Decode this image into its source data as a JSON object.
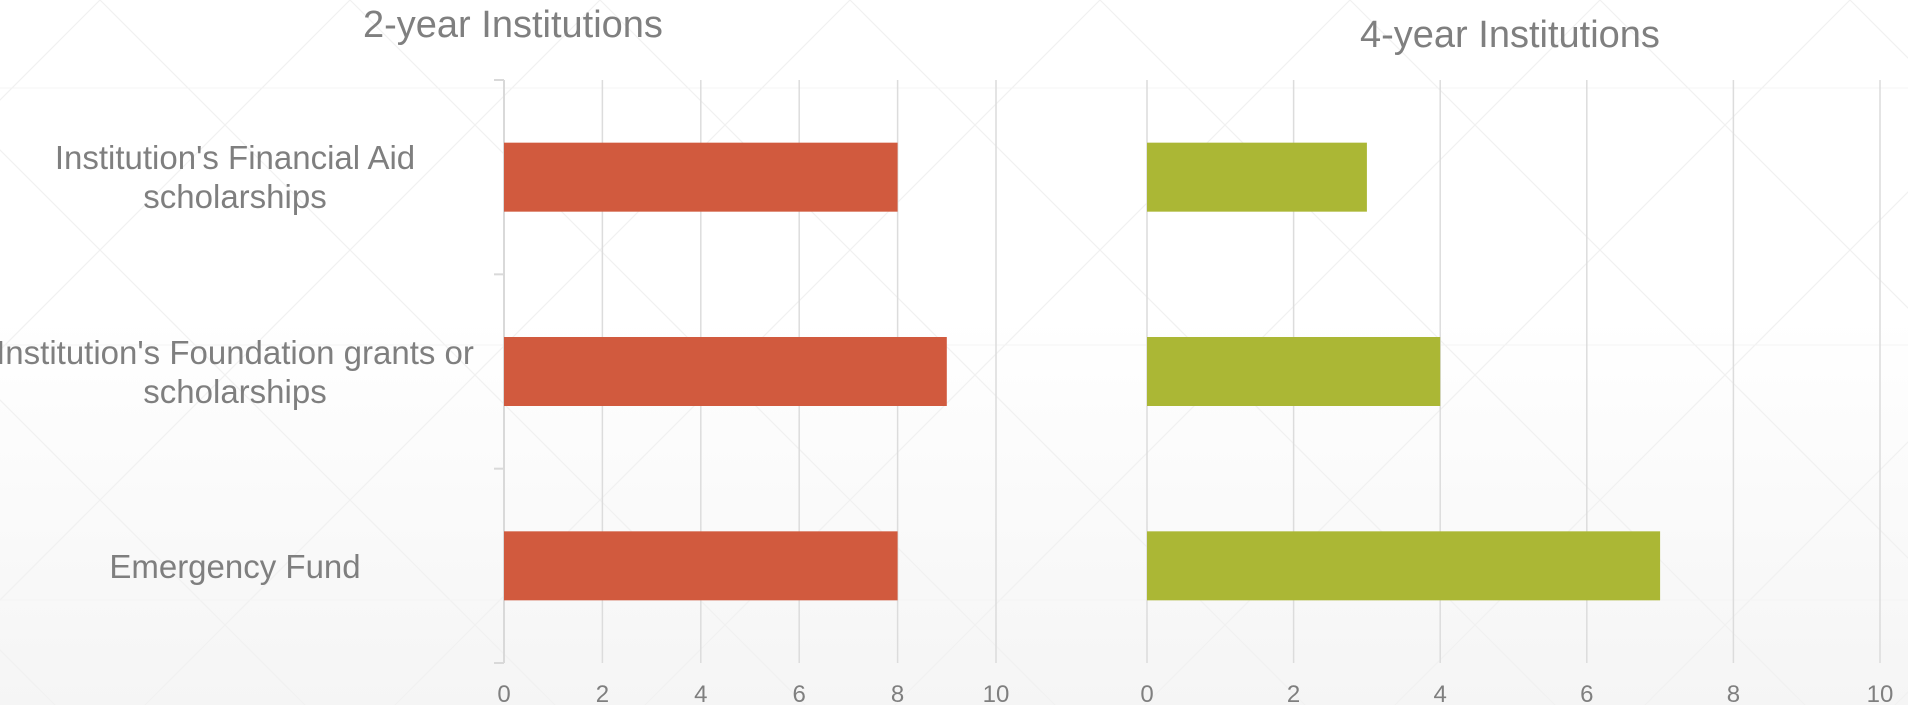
{
  "chart_data": [
    {
      "type": "bar",
      "orientation": "horizontal",
      "title": "2-year Institutions",
      "categories": [
        "Institution's Financial Aid scholarships",
        "Institution's Foundation grants or scholarships",
        "Emergency Fund"
      ],
      "values": [
        8,
        9,
        8
      ],
      "xlim": [
        0,
        10
      ],
      "xticks": [
        "0",
        "2",
        "4",
        "6",
        "8",
        "10"
      ],
      "grid": true,
      "color": "#d15a3e"
    },
    {
      "type": "bar",
      "orientation": "horizontal",
      "title": "4-year Institutions",
      "categories": [
        "Institution's Financial Aid scholarships",
        "Institution's Foundation grants or scholarships",
        "Emergency Fund"
      ],
      "values": [
        3,
        4,
        7
      ],
      "xlim": [
        0,
        10
      ],
      "xticks": [
        "0",
        "2",
        "4",
        "6",
        "8",
        "10"
      ],
      "grid": true,
      "color": "#abb735"
    }
  ],
  "colors": {
    "gridline": "#dcdcdc",
    "text": "#7f7f7f",
    "axis": "#d9d9d9"
  }
}
